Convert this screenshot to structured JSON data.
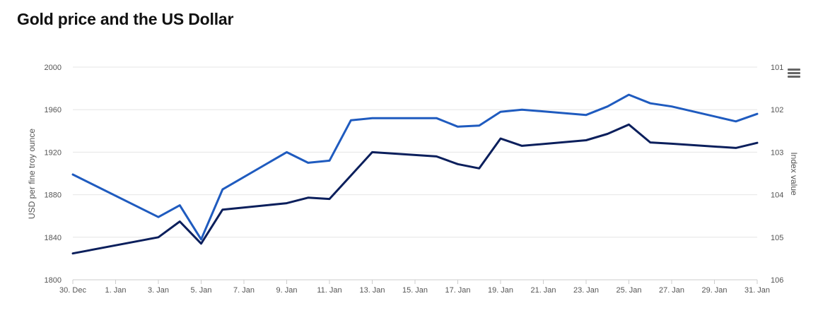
{
  "title": "Gold price and the US Dollar",
  "menu_icon": "hamburger-menu-icon",
  "chart_data": {
    "type": "line",
    "title": "Gold price and the US Dollar",
    "x": [
      "30. Dec",
      "31. Dec",
      "1. Jan",
      "2. Jan",
      "3. Jan",
      "4. Jan",
      "5. Jan",
      "6. Jan",
      "7. Jan",
      "8. Jan",
      "9. Jan",
      "10. Jan",
      "11. Jan",
      "12. Jan",
      "13. Jan",
      "14. Jan",
      "15. Jan",
      "16. Jan",
      "17. Jan",
      "18. Jan",
      "19. Jan",
      "20. Jan",
      "21. Jan",
      "22. Jan",
      "23. Jan",
      "24. Jan",
      "25. Jan",
      "26. Jan",
      "27. Jan",
      "28. Jan",
      "29. Jan",
      "30. Jan",
      "31. Jan"
    ],
    "x_tick_labels": [
      "30. Dec",
      "1. Jan",
      "3. Jan",
      "5. Jan",
      "7. Jan",
      "9. Jan",
      "11. Jan",
      "13. Jan",
      "15. Jan",
      "17. Jan",
      "19. Jan",
      "21. Jan",
      "23. Jan",
      "25. Jan",
      "27. Jan",
      "29. Jan",
      "31. Jan"
    ],
    "y_left": {
      "label": "USD per fine troy ounce",
      "range": [
        1800,
        2000
      ],
      "ticks": [
        1800,
        1840,
        1880,
        1920,
        1960,
        2000
      ]
    },
    "y_right": {
      "label": "Index value",
      "range": [
        101,
        106
      ],
      "reversed": true,
      "ticks": [
        101,
        102,
        103,
        104,
        105,
        106
      ]
    },
    "grid": true,
    "series": [
      {
        "axis": "left",
        "color": "#1f5bbf",
        "points": [
          [
            "30. Dec",
            1899
          ],
          [
            "3. Jan",
            1859
          ],
          [
            "4. Jan",
            1870
          ],
          [
            "5. Jan",
            1838
          ],
          [
            "6. Jan",
            1885
          ],
          [
            "9. Jan",
            1920
          ],
          [
            "10. Jan",
            1910
          ],
          [
            "11. Jan",
            1912
          ],
          [
            "12. Jan",
            1950
          ],
          [
            "13. Jan",
            1952
          ],
          [
            "16. Jan",
            1952
          ],
          [
            "17. Jan",
            1944
          ],
          [
            "18. Jan",
            1945
          ],
          [
            "19. Jan",
            1958
          ],
          [
            "20. Jan",
            1960
          ],
          [
            "23. Jan",
            1955
          ],
          [
            "24. Jan",
            1963
          ],
          [
            "25. Jan",
            1974
          ],
          [
            "26. Jan",
            1966
          ],
          [
            "27. Jan",
            1963
          ],
          [
            "30. Jan",
            1949
          ],
          [
            "31. Jan",
            1956
          ]
        ]
      },
      {
        "axis": "right",
        "color": "#0b1f5c",
        "points": [
          [
            "30. Dec",
            105.38
          ],
          [
            "3. Jan",
            105.0
          ],
          [
            "4. Jan",
            104.63
          ],
          [
            "5. Jan",
            105.15
          ],
          [
            "6. Jan",
            104.35
          ],
          [
            "9. Jan",
            104.2
          ],
          [
            "10. Jan",
            104.07
          ],
          [
            "11. Jan",
            104.1
          ],
          [
            "12. Jan",
            103.55
          ],
          [
            "13. Jan",
            103.0
          ],
          [
            "16. Jan",
            103.1
          ],
          [
            "17. Jan",
            103.28
          ],
          [
            "18. Jan",
            103.38
          ],
          [
            "19. Jan",
            102.68
          ],
          [
            "20. Jan",
            102.85
          ],
          [
            "23. Jan",
            102.72
          ],
          [
            "24. Jan",
            102.57
          ],
          [
            "25. Jan",
            102.35
          ],
          [
            "26. Jan",
            102.77
          ],
          [
            "27. Jan",
            102.8
          ],
          [
            "30. Jan",
            102.9
          ],
          [
            "31. Jan",
            102.78
          ]
        ]
      }
    ]
  }
}
